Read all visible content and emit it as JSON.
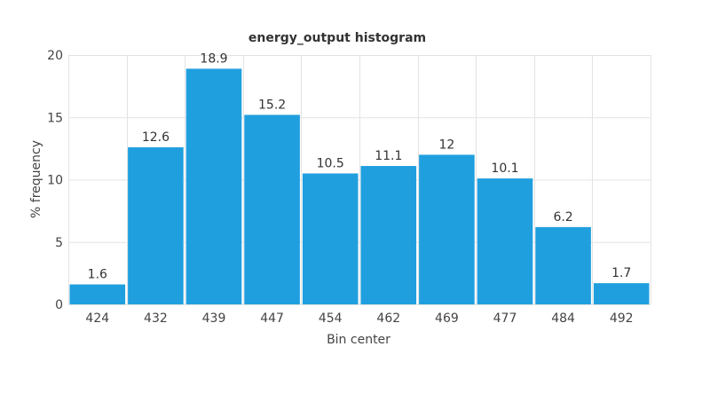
{
  "chart_data": {
    "type": "bar",
    "title": "energy_output histogram",
    "xlabel": "Bin center",
    "ylabel": "% frequency",
    "categories": [
      "424",
      "432",
      "439",
      "447",
      "454",
      "462",
      "469",
      "477",
      "484",
      "492"
    ],
    "values": [
      1.6,
      12.6,
      18.9,
      15.2,
      10.5,
      11.1,
      12,
      10.1,
      6.2,
      1.7
    ],
    "data_labels": [
      "1.6",
      "12.6",
      "18.9",
      "15.2",
      "10.5",
      "11.1",
      "12",
      "10.1",
      "6.2",
      "1.7"
    ],
    "ylim": [
      0,
      20
    ],
    "yticks": [
      0,
      5,
      10,
      15,
      20
    ],
    "grid": true,
    "bar_color": "#209fdf"
  }
}
